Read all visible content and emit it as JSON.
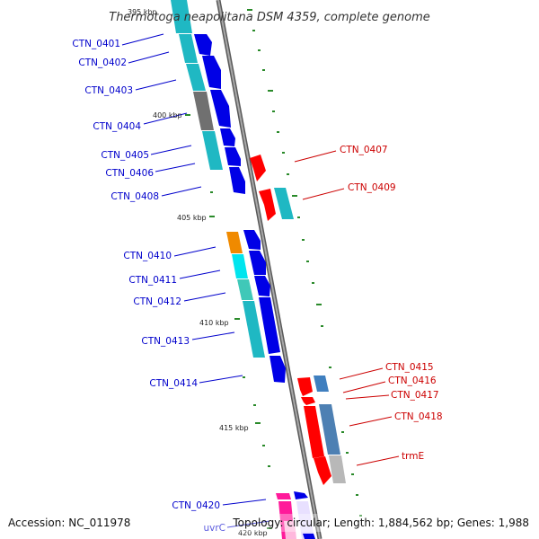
{
  "title": "Thermotoga neapolitana DSM 4359, complete genome",
  "footer": {
    "accession": "Accession: NC_011978",
    "summary": "Topology: circular; Length: 1,884,562 bp; Genes: 1,988"
  },
  "colors": {
    "left_label": "#0000cc",
    "right_label": "#cc0000",
    "backbone": "#808080",
    "ticks": "#2a8a2a"
  },
  "kbp_labels": [
    {
      "id": "kbp-395",
      "text": "395 kbp"
    },
    {
      "id": "kbp-400",
      "text": "400 kbp"
    },
    {
      "id": "kbp-405",
      "text": "405 kbp"
    },
    {
      "id": "kbp-410",
      "text": "410 kbp"
    },
    {
      "id": "kbp-415",
      "text": "415 kbp"
    },
    {
      "id": "kbp-420",
      "text": "420 kbp"
    }
  ],
  "left_genes": [
    {
      "id": "CTN_0401",
      "label": "CTN_0401"
    },
    {
      "id": "CTN_0402",
      "label": "CTN_0402"
    },
    {
      "id": "CTN_0403",
      "label": "CTN_0403"
    },
    {
      "id": "CTN_0404",
      "label": "CTN_0404"
    },
    {
      "id": "CTN_0405",
      "label": "CTN_0405"
    },
    {
      "id": "CTN_0406",
      "label": "CTN_0406"
    },
    {
      "id": "CTN_0408",
      "label": "CTN_0408"
    },
    {
      "id": "CTN_0410",
      "label": "CTN_0410"
    },
    {
      "id": "CTN_0411",
      "label": "CTN_0411"
    },
    {
      "id": "CTN_0412",
      "label": "CTN_0412"
    },
    {
      "id": "CTN_0413",
      "label": "CTN_0413"
    },
    {
      "id": "CTN_0414",
      "label": "CTN_0414"
    },
    {
      "id": "CTN_0420",
      "label": "CTN_0420"
    },
    {
      "id": "uvrC",
      "label": "uvrC"
    }
  ],
  "right_genes": [
    {
      "id": "CTN_0407",
      "label": "CTN_0407"
    },
    {
      "id": "CTN_0409",
      "label": "CTN_0409"
    },
    {
      "id": "CTN_0415",
      "label": "CTN_0415"
    },
    {
      "id": "CTN_0416",
      "label": "CTN_0416"
    },
    {
      "id": "CTN_0417",
      "label": "CTN_0417"
    },
    {
      "id": "CTN_0418",
      "label": "CTN_0418"
    },
    {
      "id": "trmE",
      "label": "trmE"
    }
  ]
}
